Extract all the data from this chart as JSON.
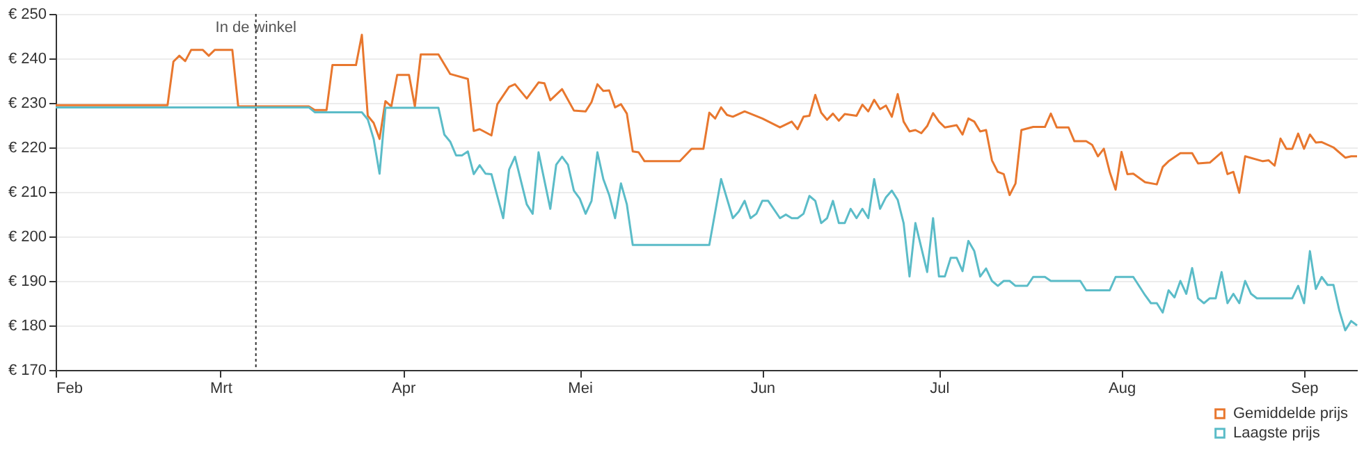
{
  "chart_data": {
    "type": "line",
    "xlim": [
      "--02-01",
      "--09-10"
    ],
    "xticks": [
      {
        "value": "--02-01",
        "label": "Feb"
      },
      {
        "value": "--03-01",
        "label": "Mrt"
      },
      {
        "value": "--04-01",
        "label": "Apr"
      },
      {
        "value": "--05-01",
        "label": "Mei"
      },
      {
        "value": "--06-01",
        "label": "Jun"
      },
      {
        "value": "--07-01",
        "label": "Jul"
      },
      {
        "value": "--08-01",
        "label": "Aug"
      },
      {
        "value": "--09-01",
        "label": "Sep"
      }
    ],
    "ylim": [
      170,
      250
    ],
    "yticks": [
      {
        "value": 170,
        "label": "€ 170"
      },
      {
        "value": 180,
        "label": "€ 180"
      },
      {
        "value": 190,
        "label": "€ 190"
      },
      {
        "value": 200,
        "label": "€ 200"
      },
      {
        "value": 210,
        "label": "€ 210"
      },
      {
        "value": 220,
        "label": "€ 220"
      },
      {
        "value": 230,
        "label": "€ 230"
      },
      {
        "value": 240,
        "label": "€ 240"
      },
      {
        "value": 250,
        "label": "€ 250"
      }
    ],
    "grid": "y",
    "legend": "bottom right",
    "line_style": "solid",
    "marker": "none",
    "ref_lines": [
      {
        "axis": "x",
        "value": "--03-07",
        "label": "In de winkel",
        "color": "#333333",
        "line_style": "dotted"
      }
    ],
    "series": [
      {
        "name": "Gemiddelde prijs",
        "color": "#e8772e",
        "x": [
          "--02-01",
          "--02-20",
          "--02-21",
          "--02-22",
          "--02-23",
          "--02-24",
          "--02-26",
          "--02-27",
          "--02-28",
          "--03-03",
          "--03-04",
          "--03-16",
          "--03-17",
          "--03-19",
          "--03-20",
          "--03-24",
          "--03-25",
          "--03-26",
          "--03-27",
          "--03-28",
          "--03-29",
          "--03-30",
          "--03-31",
          "--04-02",
          "--04-03",
          "--04-04",
          "--04-07",
          "--04-09",
          "--04-12",
          "--04-13",
          "--04-14",
          "--04-16",
          "--04-17",
          "--04-19",
          "--04-20",
          "--04-22",
          "--04-24",
          "--04-25",
          "--04-26",
          "--04-28",
          "--04-30",
          "--05-02",
          "--05-03",
          "--05-04",
          "--05-05",
          "--05-06",
          "--05-07",
          "--05-08",
          "--05-09",
          "--05-10",
          "--05-11",
          "--05-12",
          "--05-18",
          "--05-20",
          "--05-22",
          "--05-23",
          "--05-24",
          "--05-25",
          "--05-26",
          "--05-27",
          "--05-29",
          "--06-01",
          "--06-04",
          "--06-06",
          "--06-07",
          "--06-08",
          "--06-09",
          "--06-10",
          "--06-11",
          "--06-12",
          "--06-13",
          "--06-14",
          "--06-15",
          "--06-17",
          "--06-18",
          "--06-19",
          "--06-20",
          "--06-21",
          "--06-22",
          "--06-23",
          "--06-24",
          "--06-25",
          "--06-26",
          "--06-27",
          "--06-28",
          "--06-29",
          "--06-30",
          "--07-01",
          "--07-02",
          "--07-04",
          "--07-05",
          "--07-06",
          "--07-07",
          "--07-08",
          "--07-09",
          "--07-10",
          "--07-11",
          "--07-12",
          "--07-13",
          "--07-14",
          "--07-15",
          "--07-17",
          "--07-19",
          "--07-20",
          "--07-21",
          "--07-23",
          "--07-24",
          "--07-26",
          "--07-27",
          "--07-28",
          "--07-29",
          "--07-30",
          "--07-31",
          "--08-01",
          "--08-02",
          "--08-03",
          "--08-05",
          "--08-07",
          "--08-08",
          "--08-09",
          "--08-11",
          "--08-13",
          "--08-14",
          "--08-16",
          "--08-18",
          "--08-19",
          "--08-20",
          "--08-21",
          "--08-22",
          "--08-25",
          "--08-26",
          "--08-27",
          "--08-28",
          "--08-29",
          "--08-30",
          "--08-31",
          "--09-01",
          "--09-02",
          "--09-03",
          "--09-04",
          "--09-06",
          "--09-08",
          "--09-09",
          "--09-10"
        ],
        "values": [
          229.5,
          229.5,
          239.3,
          240.6,
          239.4,
          241.9,
          241.9,
          240.6,
          241.9,
          241.9,
          229.2,
          229.2,
          228.4,
          228.4,
          238.5,
          238.5,
          245.3,
          227.1,
          225.5,
          221.9,
          230.4,
          229.2,
          236.3,
          236.3,
          229.2,
          240.9,
          240.9,
          236.5,
          235.4,
          223.7,
          224.1,
          222.7,
          229.7,
          233.6,
          234.2,
          231,
          234.6,
          234.4,
          230.6,
          233.1,
          228.3,
          228.1,
          230.2,
          234.2,
          232.7,
          232.8,
          229,
          229.7,
          227.6,
          219.1,
          218.9,
          216.9,
          216.9,
          219.7,
          219.7,
          227.8,
          226.5,
          229,
          227.3,
          226.9,
          228.1,
          226.5,
          224.5,
          225.8,
          224.1,
          226.9,
          227.1,
          231.8,
          227.8,
          226.2,
          227.6,
          226,
          227.5,
          227.1,
          229.6,
          228.1,
          230.7,
          228.6,
          229.4,
          226.9,
          232,
          225.8,
          223.6,
          223.9,
          223.2,
          224.8,
          227.7,
          225.8,
          224.5,
          225,
          222.9,
          226.5,
          225.8,
          223.6,
          223.9,
          217.1,
          214.5,
          214,
          209.3,
          211.9,
          223.9,
          224.6,
          224.6,
          227.6,
          224.5,
          224.5,
          221.4,
          221.4,
          220.6,
          218,
          219.7,
          214.5,
          210.5,
          219,
          214,
          214.1,
          212.2,
          211.7,
          215.6,
          216.9,
          218.7,
          218.7,
          216.4,
          216.6,
          218.9,
          214,
          214.5,
          209.8,
          218,
          216.9,
          217.1,
          215.9,
          222,
          219.7,
          219.7,
          223.1,
          219.7,
          222.9,
          221.1,
          221.2,
          220,
          217.7,
          218,
          218
        ]
      },
      {
        "name": "Laagste prijs",
        "color": "#5bbcc8",
        "x": [
          "--02-01",
          "--03-16",
          "--03-17",
          "--03-25",
          "--03-26",
          "--03-27",
          "--03-28",
          "--03-29",
          "--04-07",
          "--04-08",
          "--04-09",
          "--04-10",
          "--04-11",
          "--04-12",
          "--04-13",
          "--04-14",
          "--04-15",
          "--04-16",
          "--04-18",
          "--04-19",
          "--04-20",
          "--04-22",
          "--04-23",
          "--04-24",
          "--04-26",
          "--04-27",
          "--04-28",
          "--04-29",
          "--04-30",
          "--05-01",
          "--05-02",
          "--05-03",
          "--05-04",
          "--05-05",
          "--05-06",
          "--05-07",
          "--05-08",
          "--05-09",
          "--05-10",
          "--05-23",
          "--05-25",
          "--05-27",
          "--05-28",
          "--05-29",
          "--05-30",
          "--05-31",
          "--06-01",
          "--06-02",
          "--06-04",
          "--06-05",
          "--06-06",
          "--06-07",
          "--06-08",
          "--06-09",
          "--06-10",
          "--06-11",
          "--06-12",
          "--06-13",
          "--06-14",
          "--06-15",
          "--06-16",
          "--06-17",
          "--06-18",
          "--06-19",
          "--06-20",
          "--06-21",
          "--06-22",
          "--06-23",
          "--06-24",
          "--06-25",
          "--06-26",
          "--06-27",
          "--06-29",
          "--06-30",
          "--07-01",
          "--07-02",
          "--07-03",
          "--07-04",
          "--07-05",
          "--07-06",
          "--07-07",
          "--07-08",
          "--07-09",
          "--07-10",
          "--07-11",
          "--07-12",
          "--07-13",
          "--07-14",
          "--07-16",
          "--07-17",
          "--07-19",
          "--07-20",
          "--07-25",
          "--07-26",
          "--07-30",
          "--07-31",
          "--08-03",
          "--08-05",
          "--08-06",
          "--08-07",
          "--08-08",
          "--08-09",
          "--08-10",
          "--08-11",
          "--08-12",
          "--08-13",
          "--08-14",
          "--08-15",
          "--08-16",
          "--08-17",
          "--08-18",
          "--08-19",
          "--08-20",
          "--08-21",
          "--08-22",
          "--08-23",
          "--08-24",
          "--08-30",
          "--08-31",
          "--09-01",
          "--09-02",
          "--09-03",
          "--09-04",
          "--09-05",
          "--09-06",
          "--09-07",
          "--09-08",
          "--09-09",
          "--09-10"
        ],
        "values": [
          229,
          229,
          227.9,
          227.9,
          226.3,
          221.9,
          214.1,
          228.9,
          228.9,
          222.9,
          221.3,
          218.2,
          218.2,
          219.1,
          214,
          216,
          214.1,
          214,
          204.1,
          215,
          217.9,
          207.2,
          205.1,
          218.9,
          206.2,
          216.1,
          217.9,
          216.1,
          210.3,
          208.5,
          205.1,
          208,
          218.9,
          212.9,
          209.3,
          204.1,
          211.9,
          207.2,
          198.1,
          198.1,
          212.9,
          204.1,
          205.6,
          208,
          204.1,
          205.1,
          208,
          208,
          204.1,
          204.9,
          204.1,
          204.1,
          205.1,
          209.1,
          208,
          203,
          204.1,
          208,
          203,
          203,
          206.2,
          204.1,
          206.2,
          204.1,
          212.9,
          206.2,
          208.8,
          210.3,
          208.2,
          203,
          191,
          203,
          192,
          204.1,
          191,
          191,
          195.2,
          195.2,
          192.2,
          199,
          196.7,
          191,
          192.8,
          190,
          188.9,
          190,
          190,
          188.9,
          188.9,
          190.9,
          190.9,
          190,
          190,
          187.9,
          187.9,
          190.9,
          190.9,
          186.8,
          185,
          185,
          182.9,
          187.9,
          186.3,
          190,
          187.1,
          192.9,
          186.1,
          185,
          186.1,
          186.1,
          192,
          185,
          187.1,
          185,
          190,
          187.1,
          186.1,
          186.1,
          188.9,
          185,
          196.7,
          188.2,
          190.9,
          189.1,
          189.1,
          183.3,
          178.9,
          181,
          180
        ]
      }
    ]
  }
}
